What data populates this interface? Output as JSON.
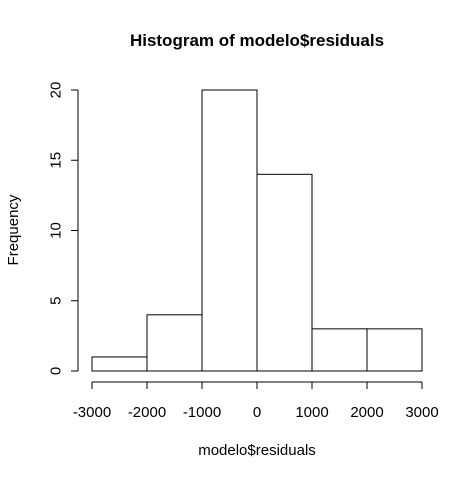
{
  "chart_data": {
    "type": "bar",
    "title": "Histogram of modelo$residuals",
    "xlabel": "modelo$residuals",
    "ylabel": "Frequency",
    "bins": [
      {
        "from": -3000,
        "to": -2000,
        "count": 1
      },
      {
        "from": -2000,
        "to": -1000,
        "count": 4
      },
      {
        "from": -1000,
        "to": 0,
        "count": 20
      },
      {
        "from": 0,
        "to": 1000,
        "count": 14
      },
      {
        "from": 1000,
        "to": 2000,
        "count": 3
      },
      {
        "from": 2000,
        "to": 3000,
        "count": 3
      }
    ],
    "x_ticks": [
      -3000,
      -2000,
      -1000,
      0,
      1000,
      2000,
      3000
    ],
    "y_ticks": [
      0,
      5,
      10,
      15,
      20
    ],
    "xlim": [
      -3000,
      3000
    ],
    "ylim": [
      0,
      20
    ],
    "grid": false,
    "bar_fill": "#ffffff",
    "bar_stroke": "#000000"
  }
}
